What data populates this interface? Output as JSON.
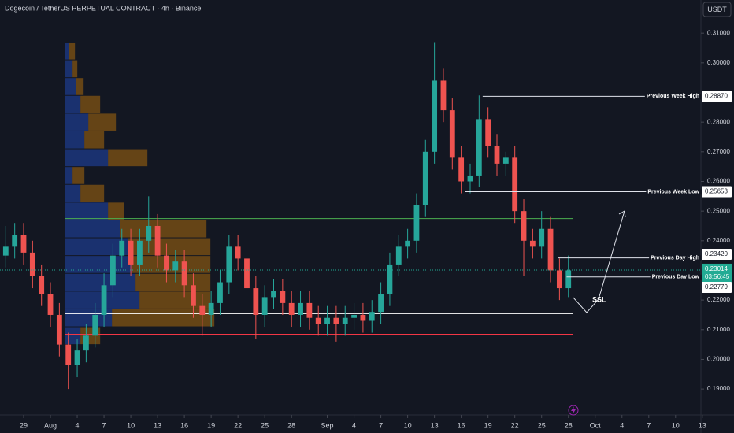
{
  "chart_data": {
    "type": "candlestick",
    "title": "Dogecoin / TetherUS PERPETUAL CONTRACT · 4h · Binance",
    "currency": "USDT",
    "x": [
      -2,
      -1,
      0,
      1,
      2,
      3,
      4,
      5,
      6,
      7,
      8,
      9,
      10,
      11,
      12,
      13,
      14,
      15,
      16,
      17,
      18,
      19,
      20,
      21,
      22,
      23,
      24,
      25,
      26,
      27,
      28,
      29,
      30,
      31,
      32,
      33,
      34,
      35,
      36,
      37,
      38,
      39,
      40,
      41,
      42,
      43,
      44,
      45,
      46,
      47,
      48,
      49,
      50,
      51,
      52,
      53,
      54,
      55,
      56,
      57,
      58,
      59,
      60,
      61
    ],
    "open": [
      0.235,
      0.238,
      0.242,
      0.236,
      0.228,
      0.222,
      0.215,
      0.205,
      0.198,
      0.203,
      0.208,
      0.215,
      0.225,
      0.235,
      0.24,
      0.232,
      0.24,
      0.245,
      0.235,
      0.23,
      0.233,
      0.225,
      0.218,
      0.215,
      0.219,
      0.226,
      0.238,
      0.234,
      0.224,
      0.215,
      0.221,
      0.223,
      0.219,
      0.215,
      0.219,
      0.214,
      0.212,
      0.214,
      0.212,
      0.214,
      0.215,
      0.213,
      0.216,
      0.222,
      0.232,
      0.238,
      0.24,
      0.252,
      0.27,
      0.294,
      0.284,
      0.268,
      0.26,
      0.262,
      0.281,
      0.272,
      0.266,
      0.268,
      0.25,
      0.24,
      0.238,
      0.244,
      0.23,
      0.224
    ],
    "high": [
      0.245,
      0.246,
      0.246,
      0.24,
      0.232,
      0.226,
      0.219,
      0.209,
      0.207,
      0.212,
      0.219,
      0.229,
      0.239,
      0.244,
      0.244,
      0.244,
      0.255,
      0.249,
      0.239,
      0.237,
      0.237,
      0.229,
      0.222,
      0.223,
      0.23,
      0.242,
      0.242,
      0.238,
      0.228,
      0.225,
      0.227,
      0.227,
      0.223,
      0.223,
      0.223,
      0.218,
      0.218,
      0.218,
      0.218,
      0.219,
      0.219,
      0.22,
      0.226,
      0.236,
      0.242,
      0.244,
      0.256,
      0.274,
      0.307,
      0.298,
      0.288,
      0.272,
      0.266,
      0.289,
      0.285,
      0.276,
      0.27,
      0.272,
      0.254,
      0.244,
      0.25,
      0.248,
      0.234,
      0.235
    ],
    "low": [
      0.231,
      0.234,
      0.232,
      0.224,
      0.218,
      0.211,
      0.201,
      0.19,
      0.194,
      0.199,
      0.204,
      0.211,
      0.221,
      0.231,
      0.228,
      0.228,
      0.236,
      0.231,
      0.226,
      0.226,
      0.221,
      0.214,
      0.208,
      0.211,
      0.215,
      0.222,
      0.23,
      0.22,
      0.207,
      0.211,
      0.217,
      0.215,
      0.211,
      0.211,
      0.21,
      0.208,
      0.208,
      0.206,
      0.208,
      0.21,
      0.209,
      0.209,
      0.212,
      0.218,
      0.228,
      0.234,
      0.236,
      0.248,
      0.266,
      0.28,
      0.264,
      0.256,
      0.256,
      0.258,
      0.268,
      0.262,
      0.262,
      0.246,
      0.228,
      0.234,
      0.234,
      0.226,
      0.22,
      0.221
    ],
    "close": [
      0.238,
      0.242,
      0.236,
      0.228,
      0.222,
      0.215,
      0.205,
      0.198,
      0.203,
      0.208,
      0.215,
      0.225,
      0.235,
      0.24,
      0.232,
      0.24,
      0.245,
      0.235,
      0.23,
      0.233,
      0.225,
      0.218,
      0.215,
      0.219,
      0.226,
      0.238,
      0.234,
      0.224,
      0.215,
      0.221,
      0.223,
      0.219,
      0.215,
      0.219,
      0.214,
      0.212,
      0.214,
      0.212,
      0.214,
      0.215,
      0.213,
      0.216,
      0.222,
      0.232,
      0.238,
      0.24,
      0.252,
      0.27,
      0.294,
      0.284,
      0.268,
      0.26,
      0.262,
      0.281,
      0.272,
      0.266,
      0.268,
      0.25,
      0.24,
      0.238,
      0.244,
      0.23,
      0.224,
      0.23
    ],
    "up_color": "#26a69a",
    "down_color": "#ef5350",
    "xlim": [
      -2.646,
      75.84
    ],
    "ylim": [
      0.1818,
      0.3212
    ],
    "xticks": [
      {
        "value": 0,
        "label": "29"
      },
      {
        "value": 3,
        "label": "Aug"
      },
      {
        "value": 6,
        "label": "4"
      },
      {
        "value": 9,
        "label": "7"
      },
      {
        "value": 12,
        "label": "10"
      },
      {
        "value": 15,
        "label": "13"
      },
      {
        "value": 18,
        "label": "16"
      },
      {
        "value": 21,
        "label": "19"
      },
      {
        "value": 24,
        "label": "22"
      },
      {
        "value": 27,
        "label": "25"
      },
      {
        "value": 30,
        "label": "28"
      },
      {
        "value": 34,
        "label": "Sep"
      },
      {
        "value": 37,
        "label": "4"
      },
      {
        "value": 40,
        "label": "7"
      },
      {
        "value": 43,
        "label": "10"
      },
      {
        "value": 46,
        "label": "13"
      },
      {
        "value": 49,
        "label": "16"
      },
      {
        "value": 52,
        "label": "19"
      },
      {
        "value": 55,
        "label": "22"
      },
      {
        "value": 58,
        "label": "25"
      },
      {
        "value": 61,
        "label": "28"
      },
      {
        "value": 64,
        "label": "Oct"
      },
      {
        "value": 67,
        "label": "4"
      },
      {
        "value": 70,
        "label": "7"
      },
      {
        "value": 73,
        "label": "10"
      },
      {
        "value": 76,
        "label": "13"
      }
    ],
    "yticks": [
      {
        "value": 0.19,
        "label": "0.19000"
      },
      {
        "value": 0.2,
        "label": "0.20000"
      },
      {
        "value": 0.21,
        "label": "0.21000"
      },
      {
        "value": 0.22,
        "label": "0.22000"
      },
      {
        "value": 0.24,
        "label": "0.24000"
      },
      {
        "value": 0.25,
        "label": "0.25000"
      },
      {
        "value": 0.26,
        "label": "0.26000"
      },
      {
        "value": 0.27,
        "label": "0.27000"
      },
      {
        "value": 0.28,
        "label": "0.28000"
      },
      {
        "value": 0.3,
        "label": "0.30000"
      },
      {
        "value": 0.31,
        "label": "0.31000"
      }
    ],
    "grid": false,
    "volume_profile": {
      "start": 4.6,
      "bins": [
        0.205,
        0.211,
        0.217,
        0.223,
        0.229,
        0.235,
        0.241,
        0.247,
        0.253,
        0.259,
        0.265,
        0.271,
        0.277,
        0.283,
        0.289,
        0.295,
        0.301,
        0.307
      ],
      "up": [
        20,
        60,
        95,
        90,
        85,
        80,
        70,
        55,
        20,
        10,
        55,
        25,
        30,
        20,
        14,
        10,
        5
      ],
      "down": [
        25,
        130,
        90,
        95,
        100,
        105,
        110,
        20,
        30,
        15,
        50,
        25,
        35,
        25,
        10,
        6,
        8
      ],
      "up_color": "#2962ff",
      "down_color": "#ff9800"
    },
    "lines": [
      {
        "value": 0.2475,
        "from": 4.6,
        "to": 61.5,
        "color": "#4caf50"
      },
      {
        "value": 0.2155,
        "from": 4.6,
        "to": 61.5,
        "color": "#ffffff"
      },
      {
        "value": 0.2085,
        "from": 4.6,
        "to": 61.5,
        "color": "#f23645"
      },
      {
        "value": 0.2207,
        "from": 58.6,
        "to": 62.6,
        "color": "#f23645"
      }
    ],
    "levels": [
      {
        "name": "Previous Week High",
        "value": 0.2887,
        "label": "0.28870",
        "from": 51.4
      },
      {
        "name": "Previous Week Low",
        "value": 0.25653,
        "label": "0.25653",
        "from": 49.4
      },
      {
        "name": "Previous Day High",
        "value": 0.2342,
        "label": "0.23420",
        "from": 59.8
      },
      {
        "name": "Previous Day Low",
        "value": 0.22779,
        "label": "0.22779",
        "from": 60.8
      }
    ],
    "last_price": {
      "value": 0.23014,
      "label": "0.23014",
      "countdown": "03:56:45",
      "color": "#22ab94"
    },
    "annotation": "SSL"
  }
}
